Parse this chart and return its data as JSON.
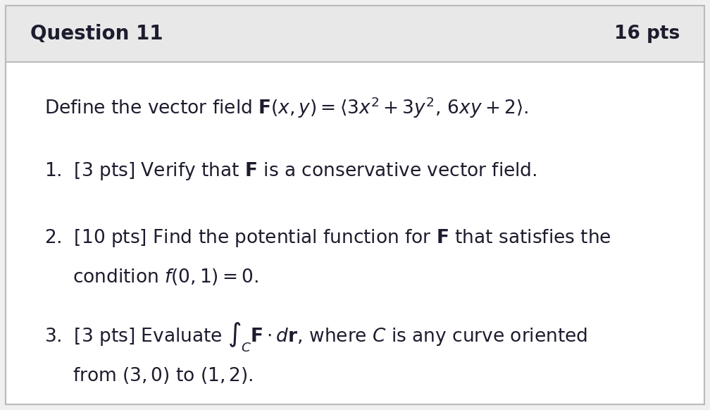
{
  "header_text": "Question 11",
  "pts_text": "16 pts",
  "header_bg": "#e8e8e8",
  "body_bg": "#ffffff",
  "outer_bg": "#f0f0f0",
  "border_color": "#bbbbbb",
  "header_font_size": 20,
  "pts_font_size": 19,
  "body_font_size": 19,
  "text_color": "#1c1c2e",
  "header_text_color": "#1c1c2e"
}
